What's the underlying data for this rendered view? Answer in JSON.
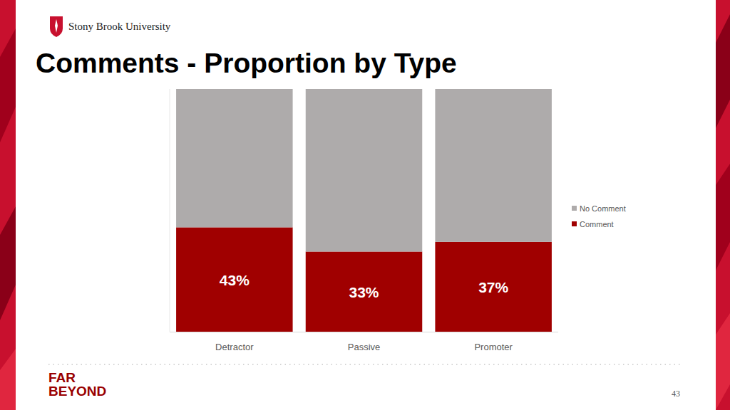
{
  "slide": {
    "logo_text": "Stony Brook University",
    "footer_lines": [
      "FAR",
      "BEYOND"
    ],
    "page_number": "43"
  },
  "chart_data": {
    "type": "bar",
    "title": "Comments - Proportion by Type",
    "categories": [
      "Detractor",
      "Passive",
      "Promoter"
    ],
    "series": [
      {
        "name": "Comment",
        "color": "#a00000",
        "values": [
          43,
          33,
          37
        ],
        "value_labels": [
          "43%",
          "33%",
          "37%"
        ],
        "data_labels": true
      },
      {
        "name": "No Comment",
        "color": "#aeabab",
        "values": [
          57,
          67,
          63
        ]
      }
    ],
    "stacked": true,
    "ylim": [
      0,
      100
    ],
    "grid": false,
    "legend": "right",
    "tick_labels": "x"
  }
}
